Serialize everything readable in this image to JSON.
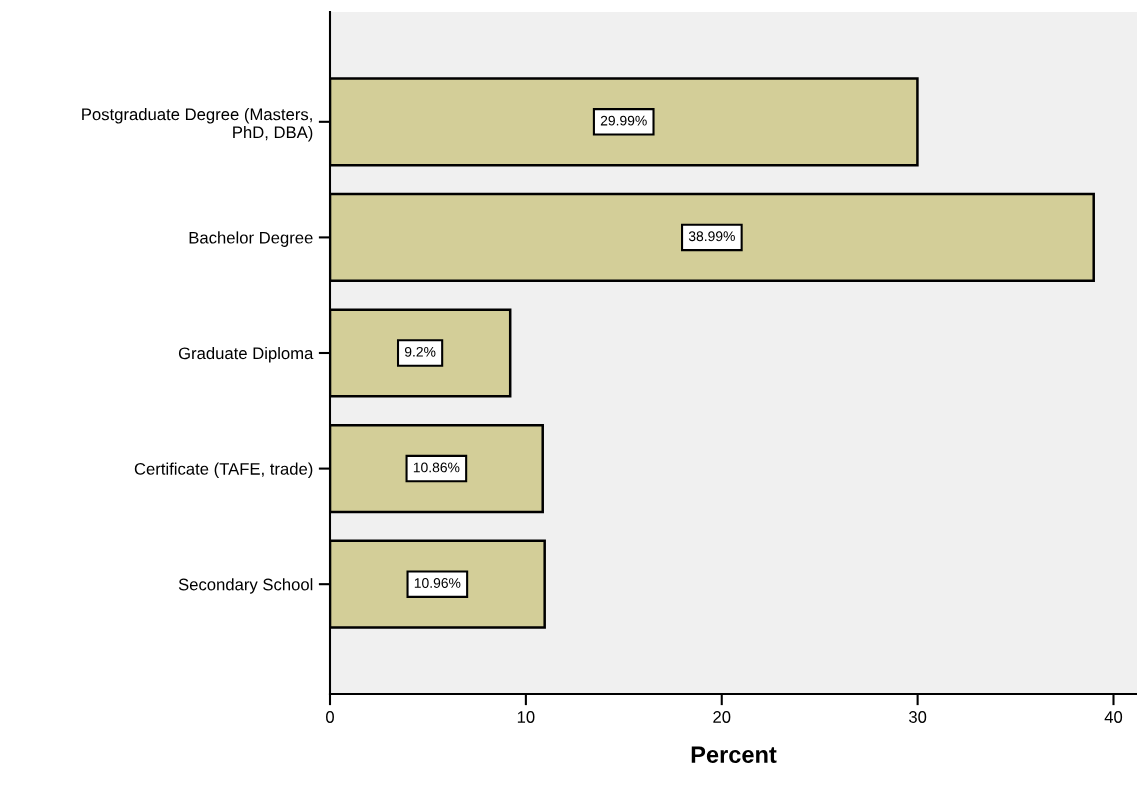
{
  "chart_data": {
    "type": "bar",
    "orientation": "horizontal",
    "xlabel": "Percent",
    "categories": [
      "Postgraduate Degree (Masters,\nPhD, DBA)",
      "Bachelor Degree",
      "Graduate Diploma",
      "Certificate (TAFE, trade)",
      "Secondary School"
    ],
    "values": [
      29.99,
      38.99,
      9.2,
      10.86,
      10.96
    ],
    "value_labels": [
      "29.99%",
      "38.99%",
      "9.2%",
      "10.86%",
      "10.96%"
    ],
    "color": "#d3ce98",
    "xlim": [
      0,
      41.2
    ],
    "xticks": [
      0,
      10,
      20,
      30,
      40
    ],
    "grid": false,
    "legend": false
  }
}
